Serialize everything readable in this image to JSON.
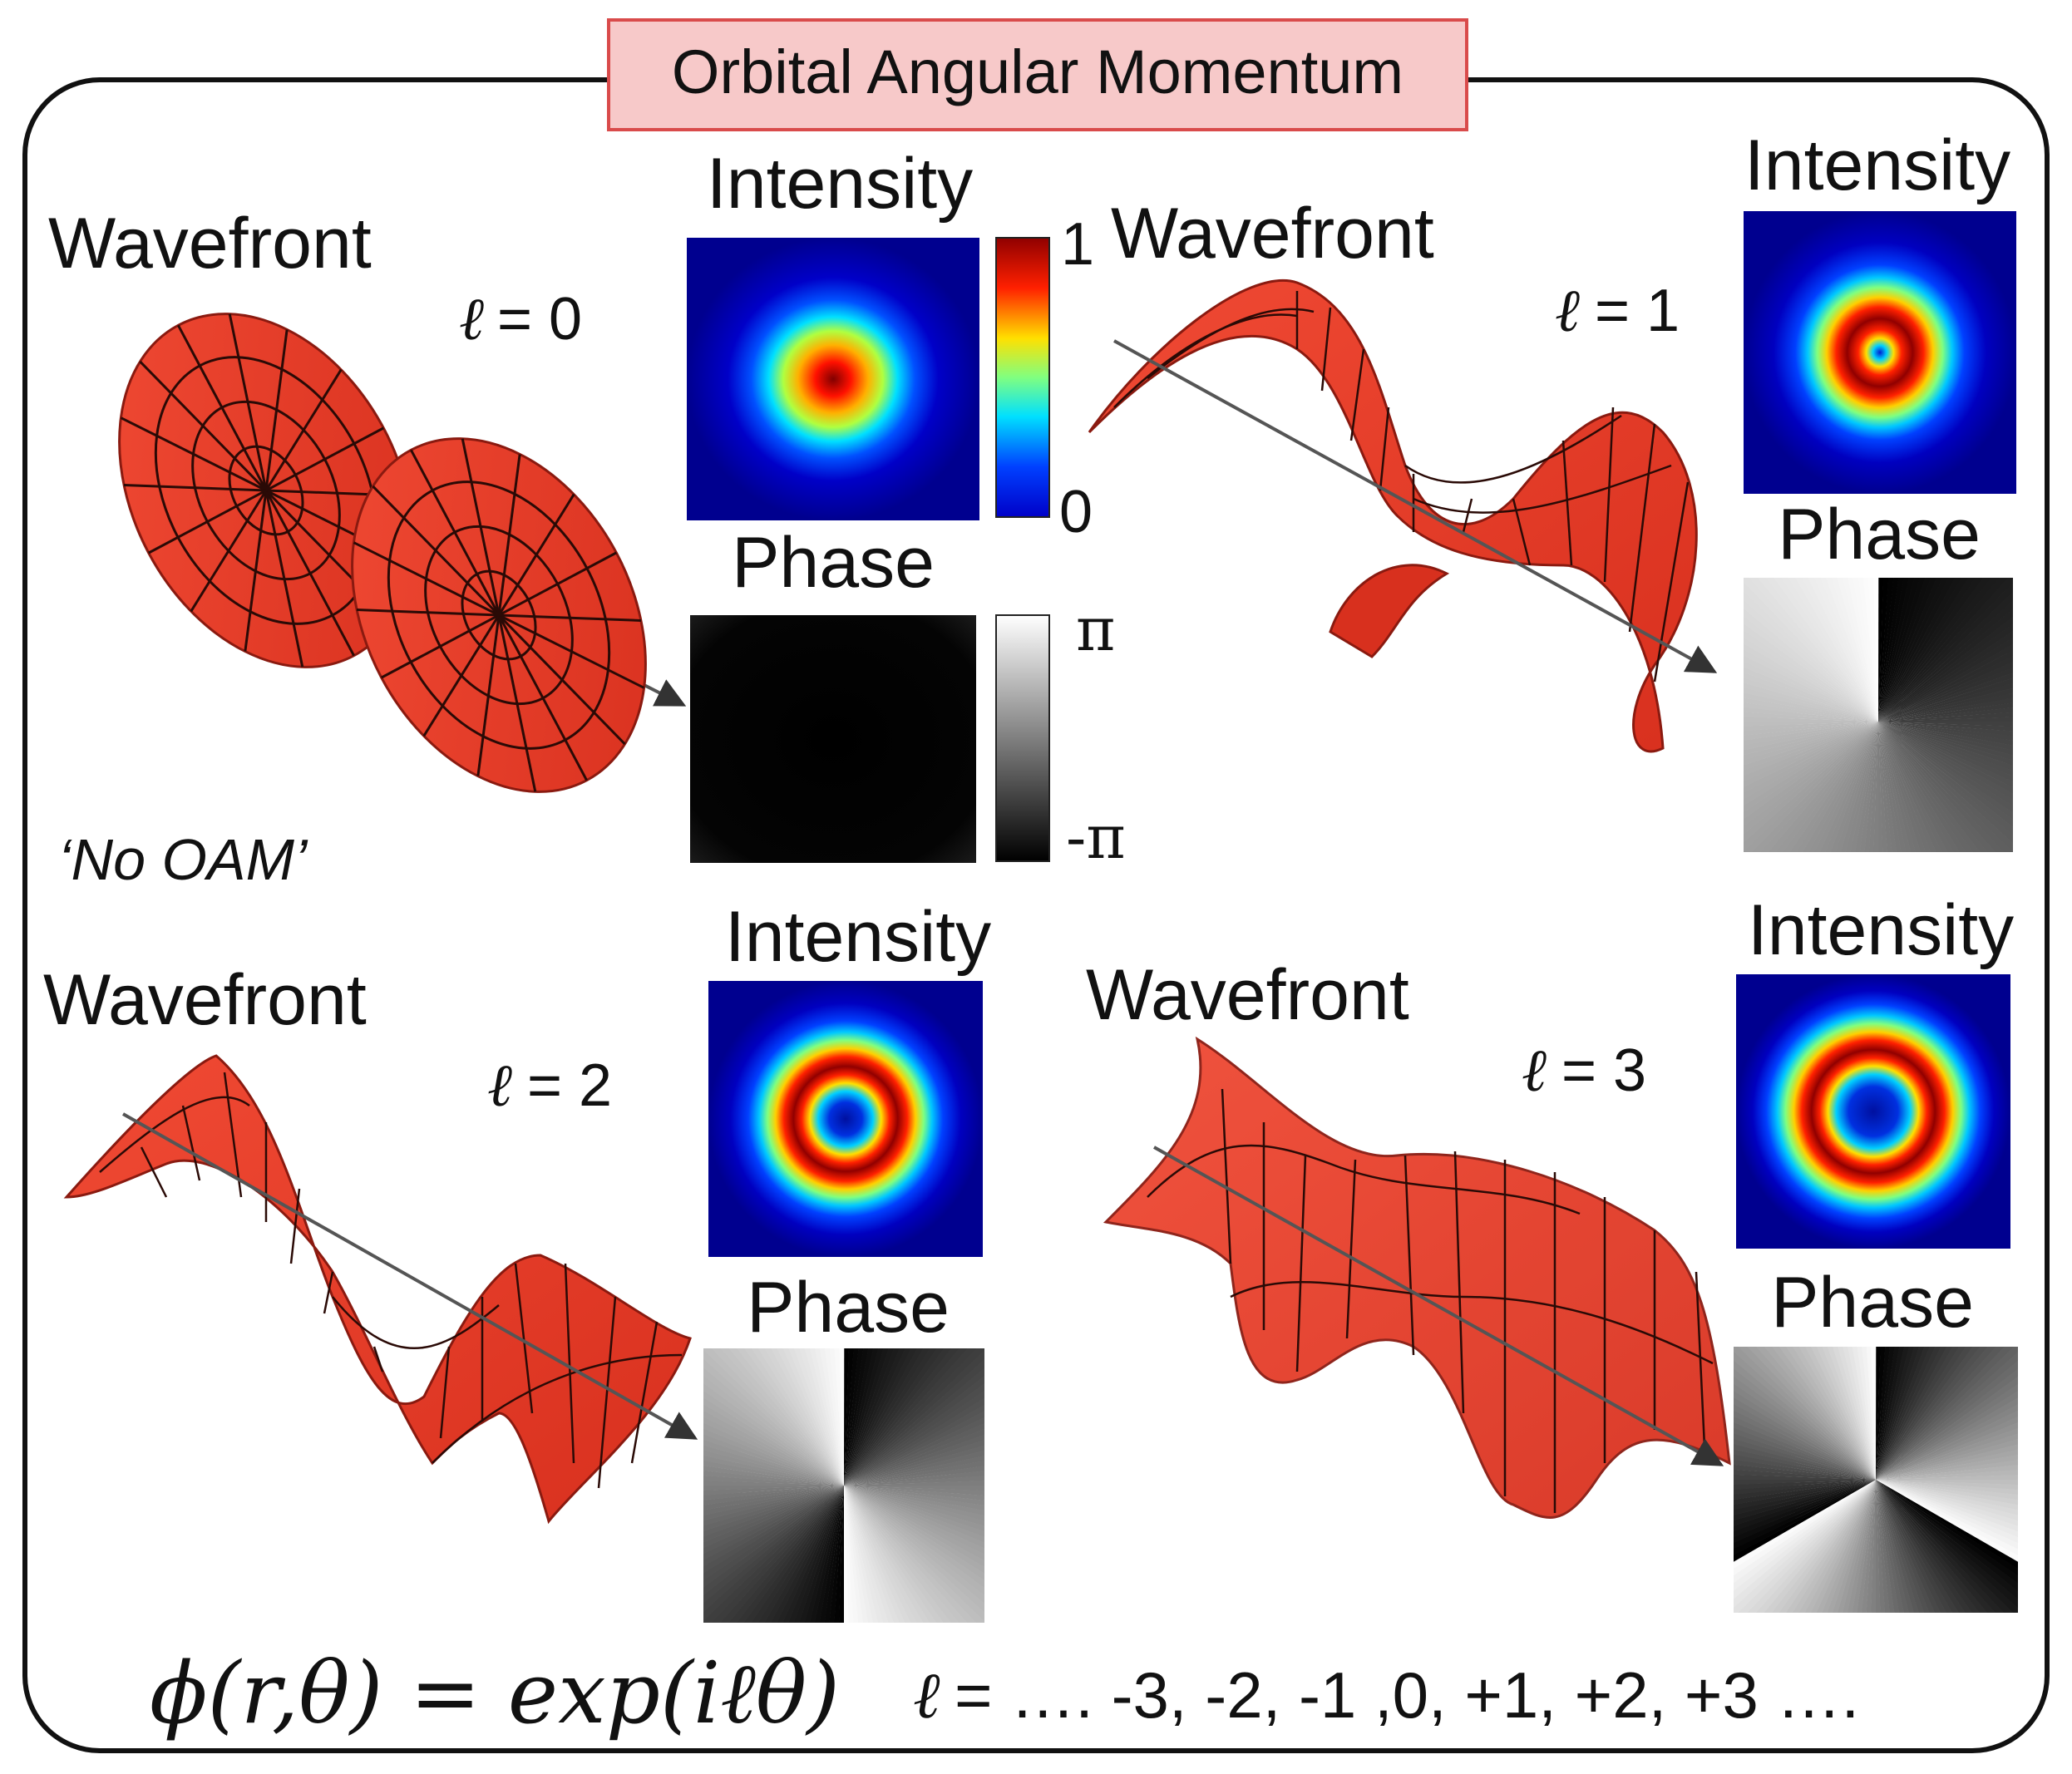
{
  "title": "Orbital Angular Momentum",
  "panels": [
    {
      "id": "l0",
      "wavefront_label": "Wavefront",
      "l_symbol": "ℓ",
      "l_text": "= 0",
      "intensity_label": "Intensity",
      "phase_label": "Phase",
      "note": "‘No OAM’"
    },
    {
      "id": "l1",
      "wavefront_label": "Wavefront",
      "l_symbol": "ℓ",
      "l_text": "= 1",
      "intensity_label": "Intensity",
      "phase_label": "Phase"
    },
    {
      "id": "l2",
      "wavefront_label": "Wavefront",
      "l_symbol": "ℓ",
      "l_text": "= 2",
      "intensity_label": "Intensity",
      "phase_label": "Phase"
    },
    {
      "id": "l3",
      "wavefront_label": "Wavefront",
      "l_symbol": "ℓ",
      "l_text": "= 3",
      "intensity_label": "Intensity",
      "phase_label": "Phase"
    }
  ],
  "colorbars": {
    "intensity": {
      "max_label": "1",
      "min_label": "0"
    },
    "phase": {
      "max_label": "π",
      "min_label": "-π"
    }
  },
  "formula": {
    "lhs": "ϕ(r,θ) = exp(iℓθ)",
    "l_symbol": "ℓ",
    "values_text": "= …. -3, -2, -1 ,0, +1, +2, +3 …."
  },
  "colors": {
    "wavefront_red": "#e8402c",
    "title_box_fill": "#f7c9c9",
    "title_box_stroke": "#d94b4b",
    "jet_low": "#00008f",
    "jet_high": "#800000"
  }
}
